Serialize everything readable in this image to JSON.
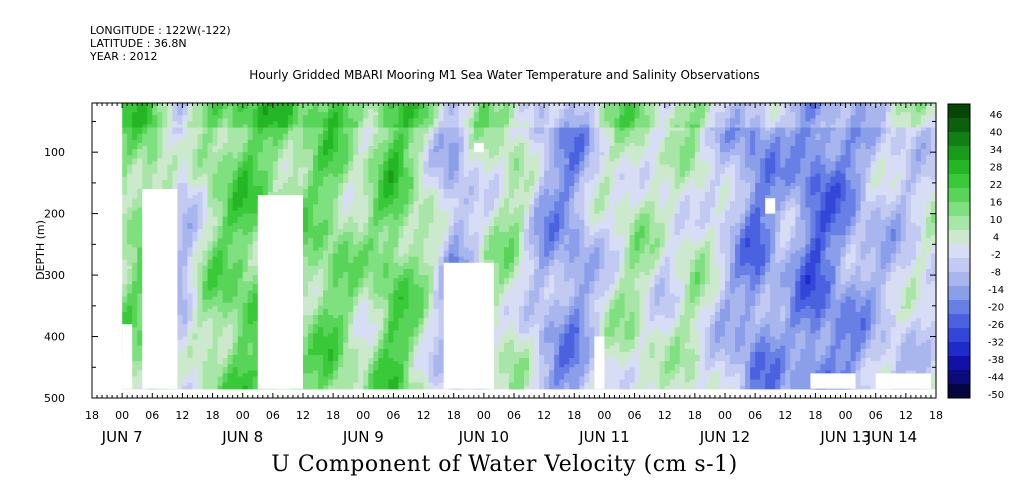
{
  "header": {
    "longitude": "LONGITUDE : 122W(-122)",
    "latitude": "LATITUDE : 36.8N",
    "year": "YEAR : 2012"
  },
  "colors": {
    "scale": [
      "#06063f",
      "#0b0b7a",
      "#1111a8",
      "#1f2bc9",
      "#3346d8",
      "#4a62e0",
      "#6880e5",
      "#8a9ee9",
      "#a9b6ee",
      "#c2caf2",
      "#d7ddf5",
      "#cde9cd",
      "#a8e6a8",
      "#7ee07e",
      "#58d558",
      "#39c939",
      "#25b625",
      "#199c19",
      "#117f11",
      "#0b610b",
      "#064706"
    ]
  },
  "chart_data": {
    "type": "heatmap",
    "title": "Hourly Gridded MBARI Mooring M1 Sea Water Temperature and Salinity Observations",
    "xlabel": "U Component of Water Velocity (cm s-1)",
    "ylabel": "DEPTH (m)",
    "ylim": [
      500,
      20
    ],
    "y_ticks": [
      100,
      200,
      300,
      400,
      500
    ],
    "x_hours": [
      -6,
      162
    ],
    "x_time_ticks": [
      "18",
      "00",
      "06",
      "12",
      "18",
      "00",
      "06",
      "12",
      "18",
      "00",
      "06",
      "12",
      "18",
      "00",
      "06",
      "12",
      "18",
      "00",
      "06",
      "12",
      "18",
      "00",
      "06",
      "12",
      "18",
      "00",
      "06",
      "12",
      "18"
    ],
    "x_date_labels": [
      "JUN 7",
      "JUN 8",
      "JUN 9",
      "JUN 10",
      "JUN 11",
      "JUN 12",
      "JUN 13",
      "JUN 14"
    ],
    "colorbar": {
      "labels": [
        "46",
        "40",
        "34",
        "28",
        "22",
        "16",
        "10",
        "4",
        "-2",
        "-8",
        "-14",
        "-20",
        "-26",
        "-32",
        "-38",
        "-44",
        "-50"
      ],
      "range": [
        -50,
        52
      ]
    },
    "grid": false,
    "data_depth_range": [
      20,
      485
    ],
    "column_mean_u": [
      {
        "hour": 0,
        "u": 12
      },
      {
        "hour": 6,
        "u": 18
      },
      {
        "hour": 12,
        "u": -6
      },
      {
        "hour": 18,
        "u": 14
      },
      {
        "hour": 24,
        "u": 20
      },
      {
        "hour": 30,
        "u": 16
      },
      {
        "hour": 36,
        "u": 14
      },
      {
        "hour": 42,
        "u": 18
      },
      {
        "hour": 48,
        "u": 8
      },
      {
        "hour": 54,
        "u": 22
      },
      {
        "hour": 60,
        "u": 10
      },
      {
        "hour": 66,
        "u": -12
      },
      {
        "hour": 72,
        "u": 6
      },
      {
        "hour": 78,
        "u": 10
      },
      {
        "hour": 84,
        "u": -10
      },
      {
        "hour": 90,
        "u": -14
      },
      {
        "hour": 96,
        "u": 2
      },
      {
        "hour": 102,
        "u": 10
      },
      {
        "hour": 108,
        "u": 2
      },
      {
        "hour": 114,
        "u": 8
      },
      {
        "hour": 120,
        "u": -4
      },
      {
        "hour": 126,
        "u": -18
      },
      {
        "hour": 132,
        "u": -8
      },
      {
        "hour": 138,
        "u": -22
      },
      {
        "hour": 144,
        "u": -14
      },
      {
        "hour": 150,
        "u": -6
      },
      {
        "hour": 156,
        "u": -2
      },
      {
        "hour": 162,
        "u": 2
      }
    ],
    "missing_data_blocks": [
      {
        "hours": [
          -6,
          0
        ],
        "depth": [
          20,
          500
        ]
      },
      {
        "hours": [
          0,
          2
        ],
        "depth": [
          380,
          485
        ]
      },
      {
        "hours": [
          4,
          11
        ],
        "depth": [
          160,
          485
        ]
      },
      {
        "hours": [
          27,
          36
        ],
        "depth": [
          170,
          485
        ]
      },
      {
        "hours": [
          64,
          74
        ],
        "depth": [
          280,
          485
        ]
      },
      {
        "hours": [
          70,
          72
        ],
        "depth": [
          85,
          100
        ]
      },
      {
        "hours": [
          94,
          96
        ],
        "depth": [
          400,
          485
        ]
      },
      {
        "hours": [
          128,
          130
        ],
        "depth": [
          175,
          200
        ]
      },
      {
        "hours": [
          137,
          146
        ],
        "depth": [
          460,
          485
        ]
      },
      {
        "hours": [
          150,
          161
        ],
        "depth": [
          460,
          485
        ]
      }
    ]
  },
  "caption": "U Component of Water Velocity (cm s-1)"
}
